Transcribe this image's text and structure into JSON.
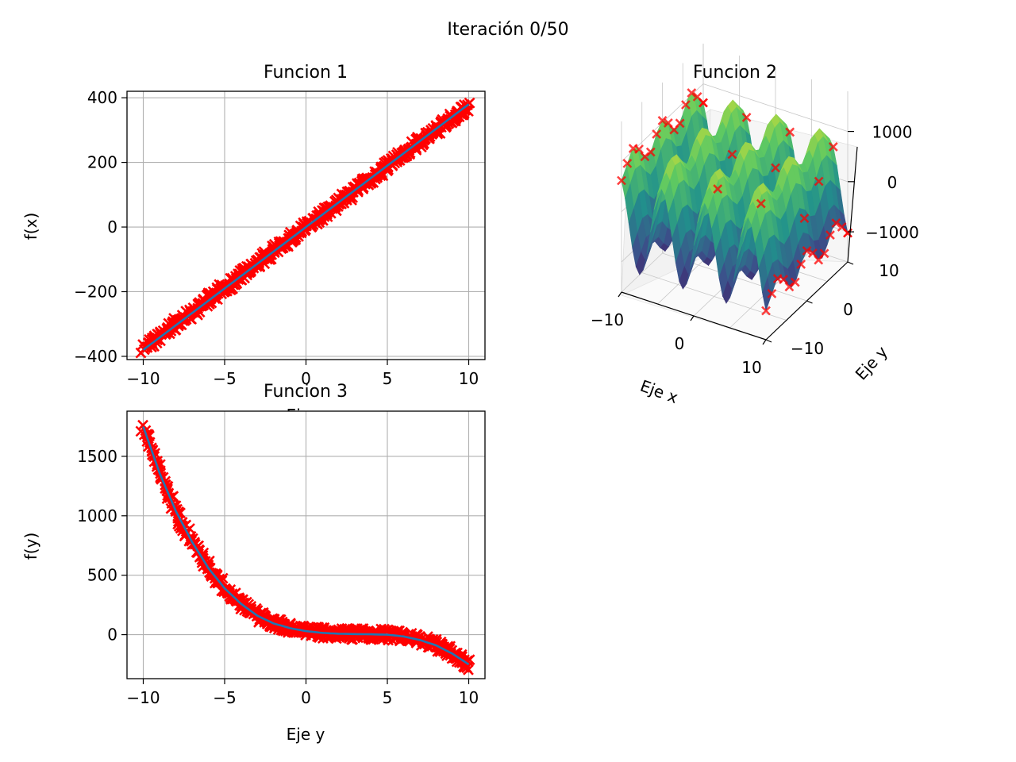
{
  "figure": {
    "title": "Iteración 0/50"
  },
  "colors": {
    "scatter": "#ff0000",
    "line": "#1f77b4",
    "grid": "#b0b0b0"
  },
  "chart_data": [
    {
      "type": "line",
      "title": "Funcion 1",
      "xlabel": "Eje x",
      "ylabel": "f(x)",
      "xlim": [
        -11,
        11
      ],
      "ylim": [
        -410,
        420
      ],
      "xticks": [
        -10,
        -5,
        0,
        5,
        10
      ],
      "yticks": [
        -400,
        -200,
        0,
        200,
        400
      ],
      "xtick_labels": [
        "−10",
        "−5",
        "0",
        "5",
        "10"
      ],
      "ytick_labels": [
        "−400",
        "−200",
        "0",
        "200",
        "400"
      ],
      "grid": true,
      "x": [
        -10,
        -7.5,
        -5,
        -2.5,
        0,
        2.5,
        5,
        7.5,
        10
      ],
      "series": [
        {
          "kind": "scatter",
          "marker": "x",
          "color": "#ff0000",
          "values": [
            -375,
            -281,
            -188,
            -94,
            0,
            94,
            188,
            281,
            375
          ]
        },
        {
          "kind": "line",
          "color": "#1f77b4",
          "values": [
            -380,
            -285,
            -190,
            -95,
            0,
            95,
            190,
            285,
            380
          ]
        }
      ]
    },
    {
      "type": "surface3d",
      "title": "Funcion 2",
      "xlabel": "Eje x",
      "ylabel": "Eje y",
      "xlim": [
        -10,
        10
      ],
      "ylim": [
        -10,
        10
      ],
      "zlim": [
        -1600,
        1800
      ],
      "xticks": [
        -10,
        0,
        10
      ],
      "yticks": [
        -10,
        0,
        10
      ],
      "zticks": [
        -1000,
        0,
        1000
      ],
      "xtick_labels": [
        "−10",
        "0",
        "10"
      ],
      "ytick_labels": [
        "−10",
        "0",
        "10"
      ],
      "ztick_labels": [
        "−1000",
        "0",
        "1000"
      ],
      "colormap": "viridis",
      "scatter_color": "#ff0000"
    },
    {
      "type": "line",
      "title": "Funcion 3",
      "xlabel": "Eje y",
      "ylabel": "f(y)",
      "xlim": [
        -11,
        11
      ],
      "ylim": [
        -370,
        1880
      ],
      "xticks": [
        -10,
        -5,
        0,
        5,
        10
      ],
      "yticks": [
        0,
        500,
        1000,
        1500
      ],
      "xtick_labels": [
        "−10",
        "−5",
        "0",
        "5",
        "10"
      ],
      "ytick_labels": [
        "0",
        "500",
        "1000",
        "1500"
      ],
      "grid": true,
      "x": [
        -10,
        -9,
        -8,
        -7,
        -6,
        -5,
        -4,
        -3,
        -2,
        -1,
        0,
        1,
        2,
        3,
        4,
        5,
        6,
        7,
        8,
        9,
        10
      ],
      "series": [
        {
          "kind": "scatter",
          "marker": "x",
          "color": "#ff0000",
          "values": [
            1750,
            1360,
            1040,
            780,
            560,
            390,
            260,
            160,
            95,
            55,
            30,
            15,
            8,
            5,
            3,
            0,
            -15,
            -45,
            -90,
            -160,
            -250
          ]
        },
        {
          "kind": "line",
          "color": "#1f77b4",
          "values": [
            1750,
            1360,
            1040,
            780,
            560,
            390,
            260,
            160,
            95,
            55,
            30,
            15,
            8,
            5,
            3,
            0,
            -15,
            -45,
            -90,
            -160,
            -250
          ]
        }
      ]
    }
  ]
}
